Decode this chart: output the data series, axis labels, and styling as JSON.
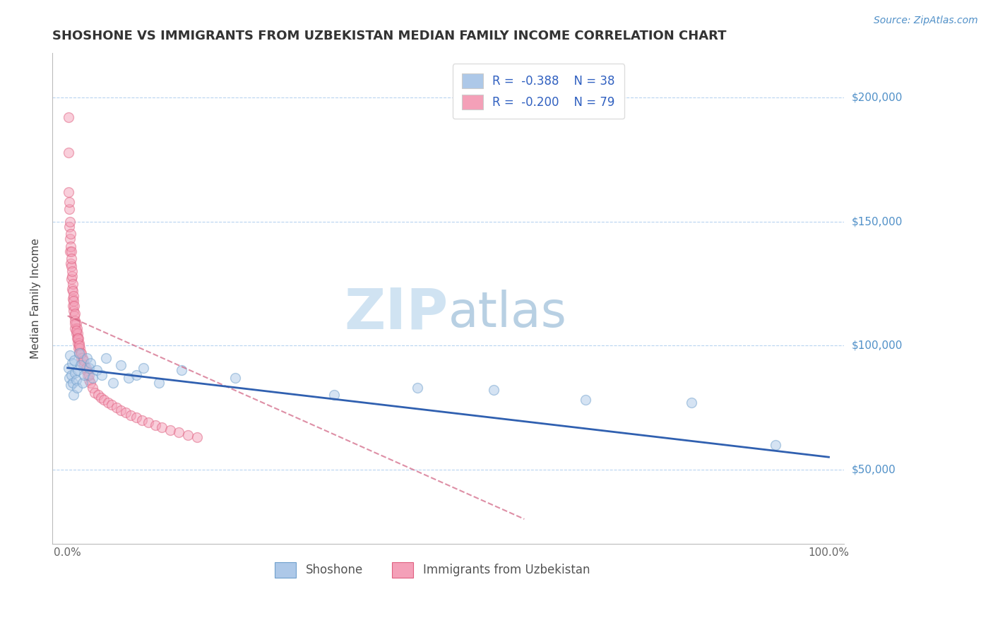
{
  "title": "SHOSHONE VS IMMIGRANTS FROM UZBEKISTAN MEDIAN FAMILY INCOME CORRELATION CHART",
  "source_text": "Source: ZipAtlas.com",
  "ylabel": "Median Family Income",
  "watermark_zip": "ZIP",
  "watermark_atlas": "atlas",
  "legend_entries": [
    {
      "label": "R =  -0.388    N = 38",
      "color": "#adc8e8"
    },
    {
      "label": "R =  -0.200    N = 79",
      "color": "#f4a0b8"
    }
  ],
  "shoshone_scatter": {
    "x": [
      0.001,
      0.002,
      0.003,
      0.004,
      0.005,
      0.006,
      0.007,
      0.008,
      0.009,
      0.01,
      0.011,
      0.012,
      0.013,
      0.015,
      0.017,
      0.02,
      0.022,
      0.025,
      0.028,
      0.03,
      0.033,
      0.038,
      0.045,
      0.05,
      0.06,
      0.07,
      0.08,
      0.09,
      0.1,
      0.12,
      0.15,
      0.22,
      0.35,
      0.46,
      0.56,
      0.68,
      0.82,
      0.93
    ],
    "y": [
      91000,
      87000,
      96000,
      84000,
      88000,
      93000,
      85000,
      80000,
      94000,
      89000,
      86000,
      83000,
      90000,
      97000,
      92000,
      85000,
      88000,
      95000,
      91000,
      93000,
      87000,
      90000,
      88000,
      95000,
      85000,
      92000,
      87000,
      88000,
      91000,
      85000,
      90000,
      87000,
      80000,
      83000,
      82000,
      78000,
      77000,
      60000
    ],
    "color": "#adc8e8",
    "edge_color": "#6fa0cc"
  },
  "uzbekistan_scatter": {
    "x": [
      0.001,
      0.001,
      0.001,
      0.002,
      0.002,
      0.002,
      0.003,
      0.003,
      0.003,
      0.004,
      0.004,
      0.004,
      0.005,
      0.005,
      0.005,
      0.005,
      0.006,
      0.006,
      0.006,
      0.007,
      0.007,
      0.007,
      0.007,
      0.008,
      0.008,
      0.008,
      0.009,
      0.009,
      0.01,
      0.01,
      0.01,
      0.011,
      0.011,
      0.012,
      0.012,
      0.013,
      0.013,
      0.014,
      0.014,
      0.015,
      0.015,
      0.016,
      0.017,
      0.018,
      0.019,
      0.02,
      0.022,
      0.024,
      0.026,
      0.028,
      0.03,
      0.033,
      0.036,
      0.04,
      0.044,
      0.048,
      0.053,
      0.058,
      0.064,
      0.07,
      0.076,
      0.083,
      0.09,
      0.098,
      0.106,
      0.115,
      0.124,
      0.135,
      0.146,
      0.158,
      0.17,
      0.01,
      0.011,
      0.013,
      0.015,
      0.018,
      0.021,
      0.024,
      0.028
    ],
    "y": [
      192000,
      178000,
      162000,
      155000,
      148000,
      158000,
      150000,
      143000,
      138000,
      145000,
      140000,
      133000,
      138000,
      132000,
      127000,
      135000,
      128000,
      123000,
      130000,
      125000,
      119000,
      122000,
      116000,
      120000,
      114000,
      118000,
      112000,
      116000,
      110000,
      113000,
      107000,
      109000,
      105000,
      107000,
      103000,
      105000,
      101000,
      103000,
      99000,
      101000,
      97000,
      99000,
      97000,
      95000,
      93000,
      95000,
      92000,
      90000,
      88000,
      86000,
      85000,
      83000,
      81000,
      80000,
      79000,
      78000,
      77000,
      76000,
      75000,
      74000,
      73000,
      72000,
      71000,
      70000,
      69000,
      68000,
      67000,
      66000,
      65000,
      64000,
      63000,
      109000,
      106000,
      103000,
      100000,
      97000,
      94000,
      91000,
      88000
    ],
    "color": "#f4a0b8",
    "edge_color": "#e06080"
  },
  "shoshone_trendline": {
    "x": [
      0.0,
      1.0
    ],
    "y": [
      91000,
      55000
    ],
    "color": "#3060b0",
    "linewidth": 2.0
  },
  "uzbekistan_trendline": {
    "x": [
      0.0,
      0.6
    ],
    "y": [
      112000,
      30000
    ],
    "color": "#d06080",
    "linewidth": 1.5,
    "linestyle": "--"
  },
  "ytick_values": [
    50000,
    100000,
    150000,
    200000
  ],
  "ytick_labels": [
    "$50,000",
    "$100,000",
    "$150,000",
    "$200,000"
  ],
  "xtick_values": [
    0.0,
    0.25,
    0.5,
    0.75,
    1.0
  ],
  "xtick_labels": [
    "0.0%",
    "",
    "",
    "",
    "100.0%"
  ],
  "xlim": [
    -0.02,
    1.02
  ],
  "ylim": [
    20000,
    218000
  ],
  "background_color": "#ffffff",
  "grid_color": "#b8d4f0",
  "title_fontsize": 13,
  "axis_label_fontsize": 11,
  "tick_fontsize": 11,
  "legend_fontsize": 12,
  "scatter_size": 100,
  "scatter_alpha": 0.5,
  "scatter_linewidth": 1.0,
  "shoshone_label": "Shoshone",
  "uzbekistan_label": "Immigrants from Uzbekistan"
}
